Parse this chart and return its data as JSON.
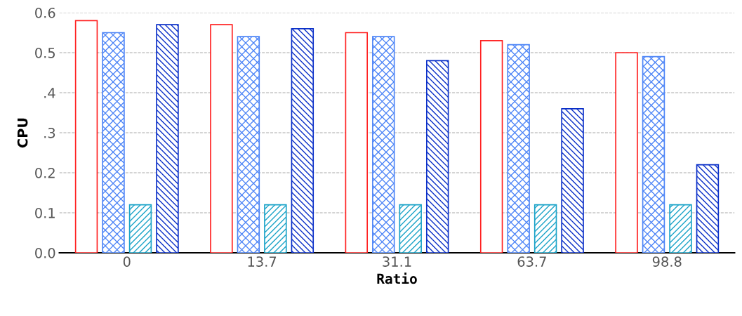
{
  "chart_data": {
    "type": "bar",
    "xlabel": "Ratio",
    "ylabel": "CPU",
    "categories": [
      "0",
      "13.7",
      "31.1",
      "63.7",
      "98.8"
    ],
    "series": [
      {
        "color": "#ff2020",
        "values": [
          0.58,
          0.57,
          0.55,
          0.53,
          0.5
        ]
      },
      {
        "color": "#4f86f7",
        "values": [
          0.55,
          0.54,
          0.54,
          0.52,
          0.49
        ]
      },
      {
        "color": "#1aa3c8",
        "values": [
          0.12,
          0.12,
          0.12,
          0.12,
          0.12
        ]
      },
      {
        "color": "#0a2fc8",
        "values": [
          0.57,
          0.56,
          0.48,
          0.36,
          0.22
        ]
      }
    ],
    "ylim": [
      0,
      0.6
    ],
    "yticks": [
      {
        "value": 0,
        "label": "0.0"
      },
      {
        "value": 0.1,
        "label": "0.1"
      },
      {
        "value": 0.2,
        "label": "0.2"
      },
      {
        "value": 0.3,
        "label": ".3"
      },
      {
        "value": 0.4,
        "label": ".4"
      },
      {
        "value": 0.5,
        "label": "0.5"
      },
      {
        "value": 0.6,
        "label": "0.6"
      }
    ],
    "grid": "y"
  }
}
